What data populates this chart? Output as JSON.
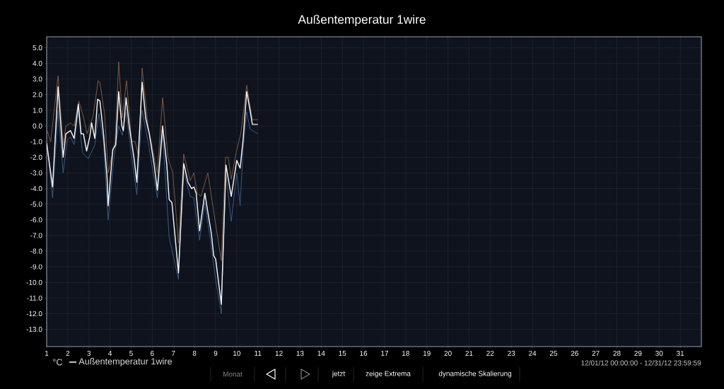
{
  "chart_data": {
    "type": "line",
    "title": "Außentemperatur 1wire",
    "xlim": [
      1,
      32
    ],
    "ylim": [
      -14.1,
      5.7
    ],
    "xticks": [
      1,
      2,
      3,
      4,
      5,
      6,
      7,
      8,
      9,
      10,
      11,
      12,
      13,
      14,
      15,
      16,
      17,
      18,
      19,
      20,
      21,
      22,
      23,
      24,
      25,
      26,
      27,
      28,
      29,
      30,
      31
    ],
    "yticks": [
      {
        "value": 5,
        "label": "5.0"
      },
      {
        "value": 4,
        "label": "4.0"
      },
      {
        "value": 3,
        "label": "3.0"
      },
      {
        "value": 2,
        "label": "2.0"
      },
      {
        "value": 1,
        "label": "1.0"
      },
      {
        "value": 0,
        "label": "0.0"
      },
      {
        "value": -1,
        "label": "-1.0"
      },
      {
        "value": -2,
        "label": "-2.0"
      },
      {
        "value": -3,
        "label": "-3.0"
      },
      {
        "value": -4,
        "label": "-4.0"
      },
      {
        "value": -5,
        "label": "-5.0"
      },
      {
        "value": -6,
        "label": "-6.0"
      },
      {
        "value": -7,
        "label": "-7.0"
      },
      {
        "value": -8,
        "label": "-8.0"
      },
      {
        "value": -9,
        "label": "-9.0"
      },
      {
        "value": -10,
        "label": "-10.0"
      },
      {
        "value": -11,
        "label": "-11.0"
      },
      {
        "value": -12,
        "label": "-12.0"
      },
      {
        "value": -13,
        "label": "-13.0"
      }
    ],
    "grid": true,
    "legend": "bottom left",
    "series": [
      {
        "color": "#8a5e42",
        "x": [
          1.0,
          1.19,
          1.54,
          1.78,
          1.91,
          2.13,
          2.3,
          2.52,
          2.74,
          2.91,
          3.19,
          3.44,
          3.52,
          3.74,
          3.91,
          4.24,
          4.41,
          4.58,
          4.78,
          5.02,
          5.19,
          5.36,
          5.52,
          5.8,
          6.02,
          6.24,
          6.49,
          6.74,
          6.97,
          7.24,
          7.49,
          7.8,
          7.97,
          8.13,
          8.3,
          8.63,
          8.97,
          9.27,
          9.47,
          9.6,
          9.74,
          9.97,
          10.19,
          10.47,
          10.74,
          11.0
        ],
        "values": [
          -0.2,
          -1.0,
          3.2,
          -1.2,
          0.0,
          0.2,
          0.0,
          1.6,
          0.6,
          -0.5,
          0.6,
          2.9,
          2.8,
          0.8,
          -3.0,
          -1.0,
          4.1,
          0.5,
          2.9,
          -1.0,
          -1.0,
          -2.0,
          3.7,
          0.0,
          -1.5,
          -3.0,
          1.8,
          -2.0,
          -3.0,
          -7.5,
          -1.8,
          -3.5,
          -3.0,
          -4.3,
          -4.5,
          -3.0,
          -6.0,
          -8.6,
          -2.0,
          -2.0,
          -3.4,
          -1.7,
          -0.5,
          2.6,
          0.4,
          0.4
        ]
      },
      {
        "color": "#3d5f8c",
        "x": [
          1.0,
          1.08,
          1.28,
          1.54,
          1.78,
          1.97,
          2.13,
          2.3,
          2.5,
          2.69,
          2.97,
          3.28,
          3.47,
          3.69,
          3.91,
          4.19,
          4.41,
          4.58,
          4.76,
          5.08,
          5.27,
          5.52,
          5.8,
          6.24,
          6.49,
          6.8,
          7.24,
          7.49,
          7.8,
          7.97,
          8.24,
          8.49,
          8.74,
          9.02,
          9.27,
          9.49,
          9.74,
          10.0,
          10.16,
          10.3,
          10.47,
          10.63,
          11.0
        ],
        "values": [
          -1.3,
          -2.0,
          -4.6,
          1.0,
          -3.0,
          -0.9,
          -0.7,
          -1.2,
          1.0,
          -1.7,
          -2.1,
          -1.2,
          0.8,
          -1.0,
          -6.0,
          -2.0,
          0.0,
          -0.6,
          0.9,
          -2.5,
          -4.4,
          1.0,
          -1.0,
          -4.6,
          -0.5,
          -7.1,
          -9.8,
          -2.9,
          -4.5,
          -4.6,
          -7.3,
          -4.9,
          -7.2,
          -10.0,
          -12.0,
          -3.0,
          -6.1,
          -3.0,
          -5.1,
          -1.5,
          0.9,
          -0.2,
          -0.5
        ]
      },
      {
        "name": "Außentemperatur 1wire",
        "color": "#f2f2f2",
        "x": [
          1.0,
          1.28,
          1.54,
          1.78,
          1.91,
          2.13,
          2.3,
          2.5,
          2.63,
          2.74,
          2.89,
          3.04,
          3.13,
          3.28,
          3.41,
          3.52,
          3.69,
          3.86,
          3.91,
          4.13,
          4.27,
          4.41,
          4.56,
          4.63,
          4.76,
          4.91,
          5.13,
          5.27,
          5.52,
          5.69,
          5.86,
          6.08,
          6.24,
          6.49,
          6.69,
          6.8,
          6.93,
          7.24,
          7.49,
          7.69,
          7.86,
          7.97,
          8.08,
          8.24,
          8.49,
          8.63,
          8.8,
          8.91,
          9.0,
          9.27,
          9.49,
          9.74,
          10.0,
          10.16,
          10.3,
          10.47,
          10.63,
          10.74,
          11.0
        ],
        "values": [
          -1.1,
          -3.9,
          2.5,
          -2.0,
          -0.5,
          -0.3,
          -0.8,
          1.4,
          -0.5,
          -0.5,
          -1.6,
          -0.7,
          0.2,
          -0.8,
          1.7,
          1.6,
          -0.5,
          -3.3,
          -5.1,
          -1.5,
          -1.2,
          2.2,
          0.0,
          -0.3,
          1.8,
          0.0,
          -2.0,
          -3.6,
          2.8,
          0.5,
          -0.5,
          -2.4,
          -4.1,
          0.0,
          -2.5,
          -4.7,
          -4.9,
          -9.4,
          -2.4,
          -3.6,
          -4.0,
          -3.9,
          -4.3,
          -6.7,
          -4.3,
          -5.5,
          -6.9,
          -8.3,
          -8.5,
          -11.4,
          -2.5,
          -4.5,
          -2.2,
          -2.7,
          -0.9,
          2.2,
          1.0,
          0.1,
          0.1
        ]
      }
    ],
    "annotations": [
      "°C",
      "12/01/12 00:00:00 - 12/31/12 23:59:59",
      "Monat",
      "jetzt",
      "zeige Extrema",
      "dynamische Skalierung"
    ]
  }
}
